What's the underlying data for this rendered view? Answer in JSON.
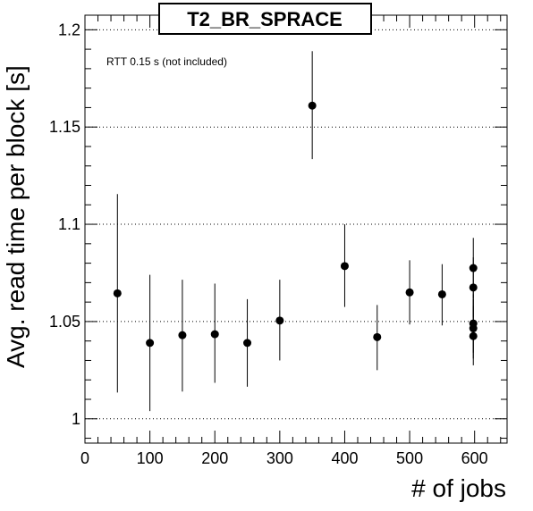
{
  "chart_data": {
    "type": "scatter",
    "title": "T2_BR_SPRACE",
    "xlabel": "# of jobs",
    "ylabel": "Avg. read time per block [s]",
    "annotation": "RTT 0.15 s (not included)",
    "xlim": [
      0,
      650
    ],
    "ylim": [
      0.9875,
      1.2075
    ],
    "x_ticks": [
      0,
      100,
      200,
      300,
      400,
      500,
      600
    ],
    "x_tick_labels": [
      "0",
      "100",
      "200",
      "300",
      "400",
      "500",
      "600"
    ],
    "y_ticks": [
      1.0,
      1.05,
      1.1,
      1.15,
      1.2
    ],
    "y_tick_labels": [
      "1",
      "1.05",
      "1.1",
      "1.15",
      "1.2"
    ],
    "grid": "y-dotted",
    "legend": "none",
    "marker_color": "#000000",
    "points": [
      {
        "x": 50,
        "y": 1.0645,
        "ylow": 1.0135,
        "yhigh": 1.1155
      },
      {
        "x": 100,
        "y": 1.039,
        "ylow": 1.004,
        "yhigh": 1.074
      },
      {
        "x": 150,
        "y": 1.043,
        "ylow": 1.014,
        "yhigh": 1.0715
      },
      {
        "x": 200,
        "y": 1.0435,
        "ylow": 1.0185,
        "yhigh": 1.0695
      },
      {
        "x": 250,
        "y": 1.039,
        "ylow": 1.0165,
        "yhigh": 1.0615
      },
      {
        "x": 300,
        "y": 1.0505,
        "ylow": 1.03,
        "yhigh": 1.0715
      },
      {
        "x": 350,
        "y": 1.161,
        "ylow": 1.1335,
        "yhigh": 1.189
      },
      {
        "x": 400,
        "y": 1.0785,
        "ylow": 1.0575,
        "yhigh": 1.1
      },
      {
        "x": 450,
        "y": 1.042,
        "ylow": 1.025,
        "yhigh": 1.0585
      },
      {
        "x": 500,
        "y": 1.065,
        "ylow": 1.0485,
        "yhigh": 1.0815
      },
      {
        "x": 550,
        "y": 1.064,
        "ylow": 1.048,
        "yhigh": 1.0795
      },
      {
        "x": 598,
        "y": 1.0775,
        "ylow": 1.062,
        "yhigh": 1.093
      },
      {
        "x": 598,
        "y": 1.0675,
        "ylow": 1.052,
        "yhigh": 1.083
      },
      {
        "x": 598,
        "y": 1.049,
        "ylow": 1.034,
        "yhigh": 1.064
      },
      {
        "x": 598,
        "y": 1.0465,
        "ylow": 1.031,
        "yhigh": 1.0615
      },
      {
        "x": 598,
        "y": 1.0425,
        "ylow": 1.0275,
        "yhigh": 1.058
      }
    ]
  }
}
